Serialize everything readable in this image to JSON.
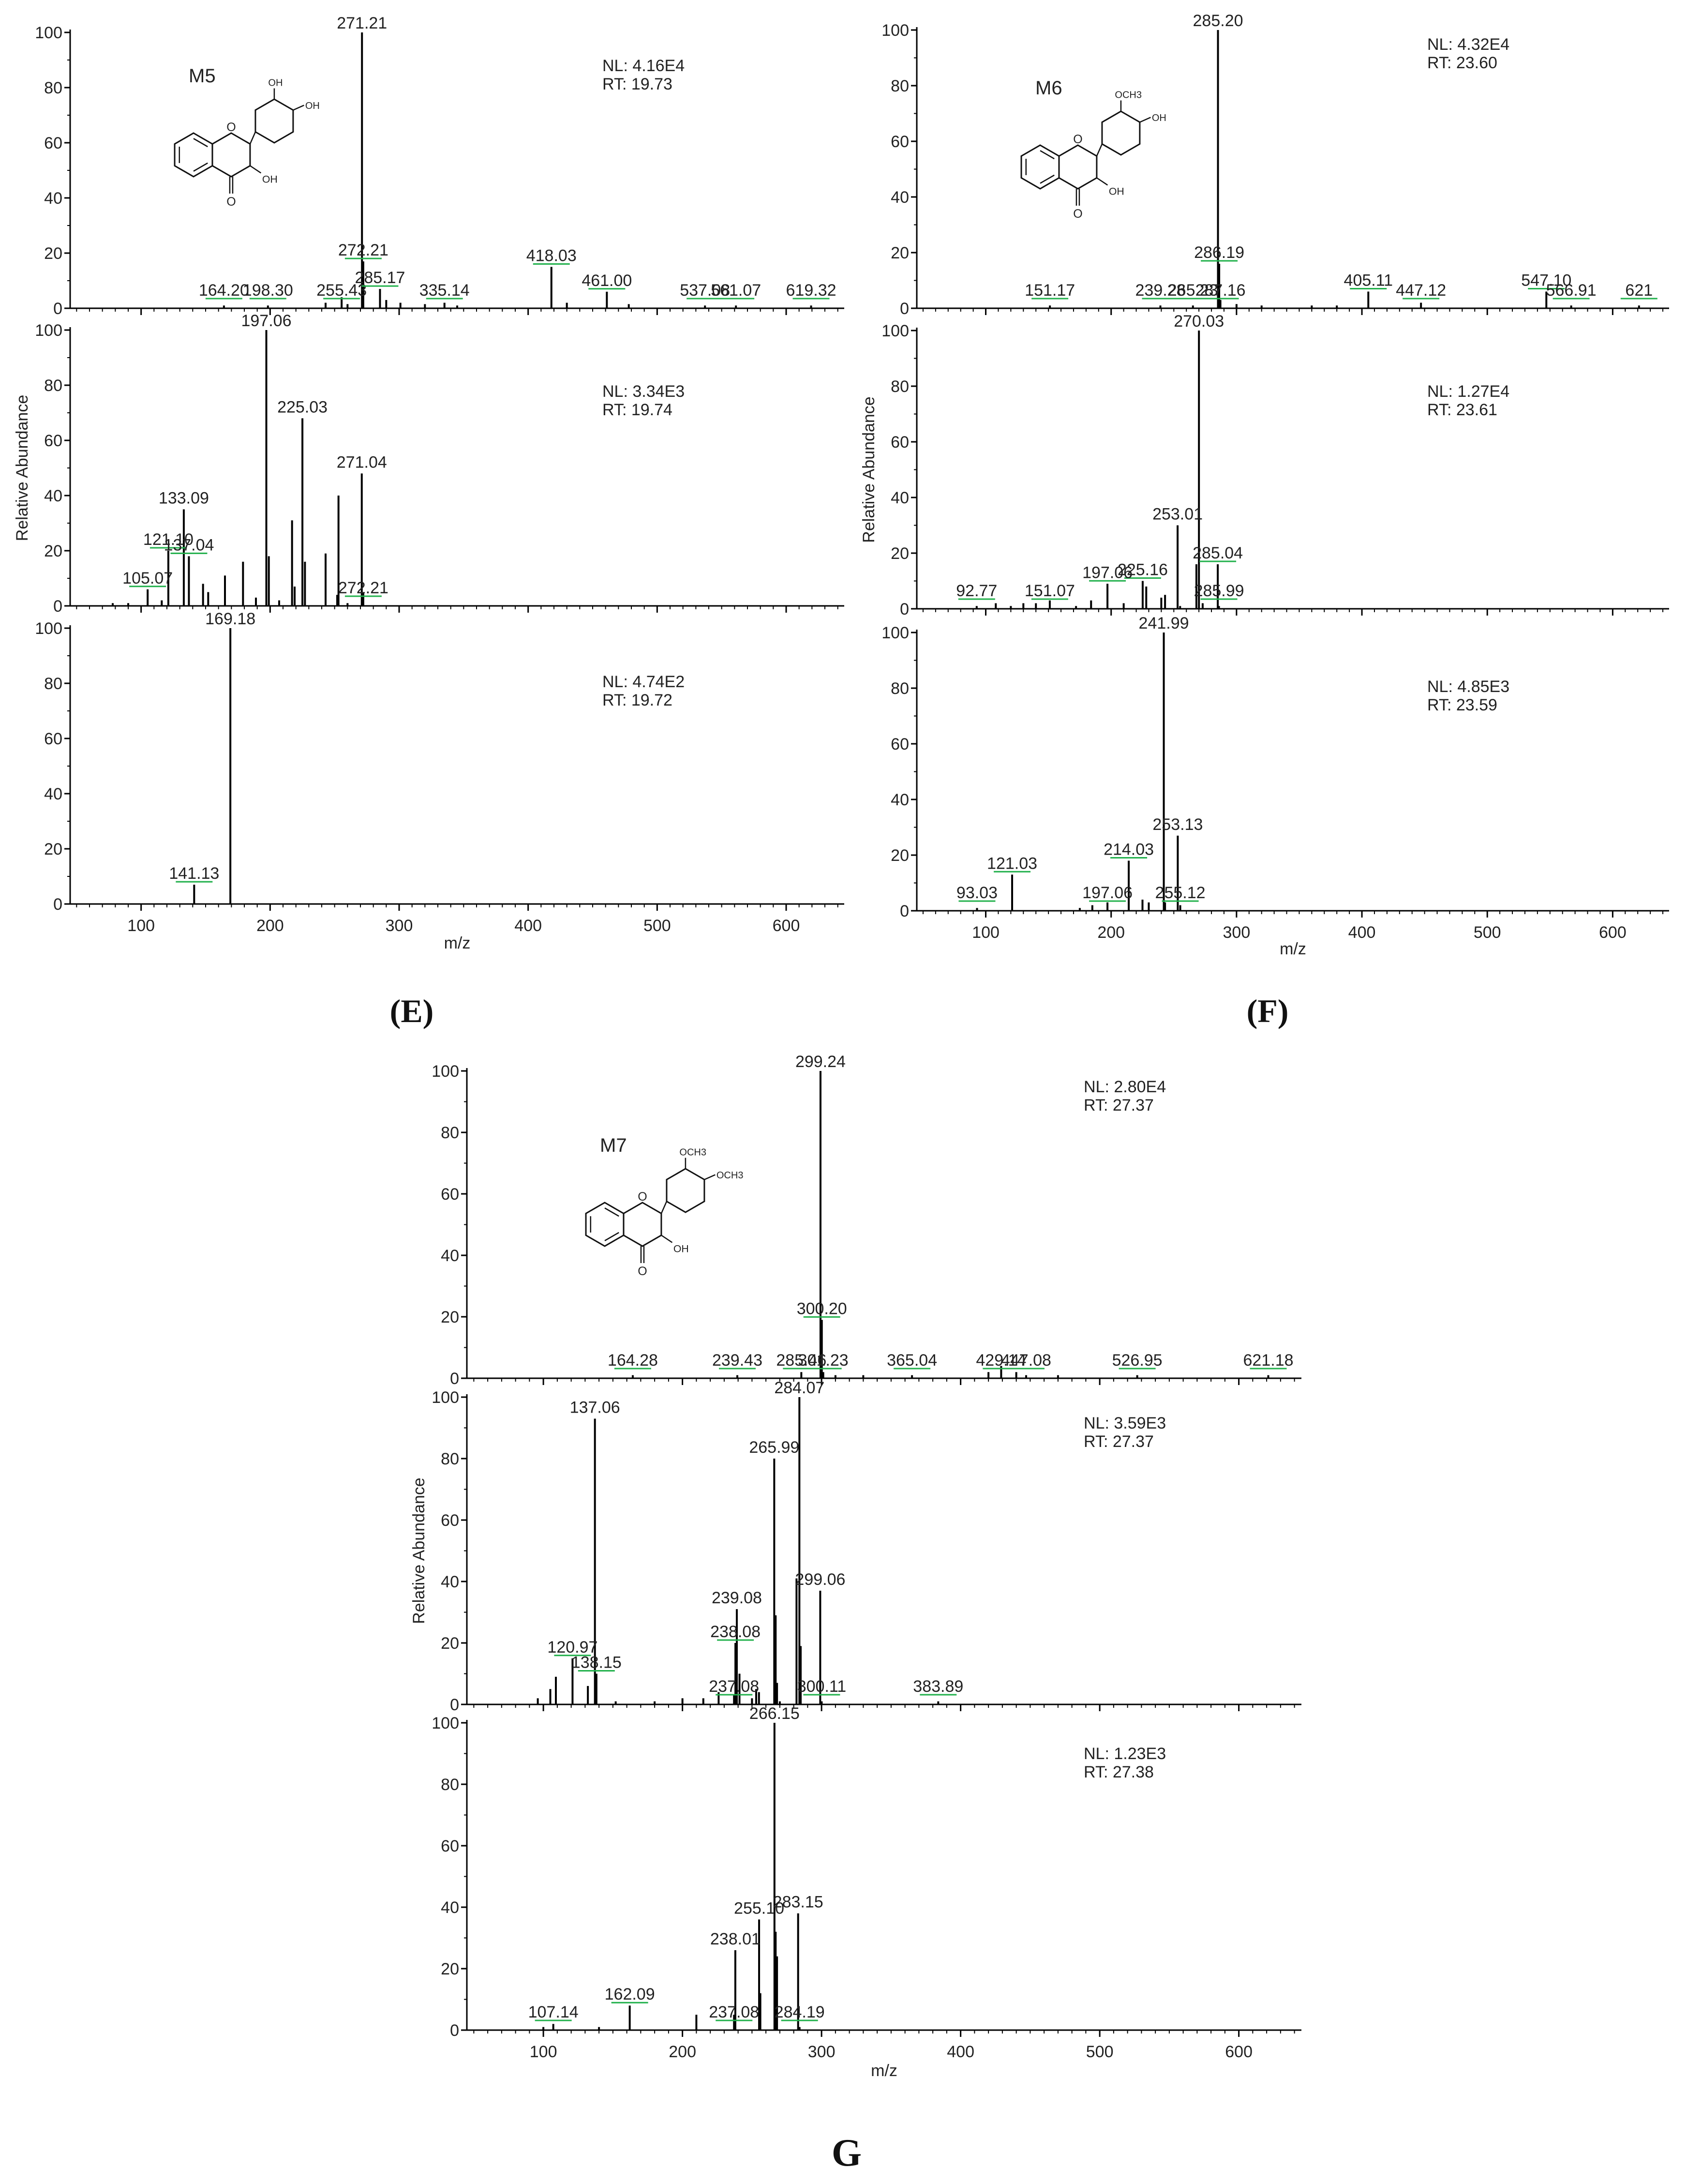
{
  "figure": {
    "panel_labels": [
      "(E)",
      "(F)",
      "G"
    ]
  },
  "chart_data": [
    {
      "type": "bar",
      "panel": "E",
      "compound": "M5",
      "xlabel": "m/z",
      "ylabel": "Relative Abundance",
      "xlim": [
        45,
        645
      ],
      "ylim": [
        0,
        100
      ],
      "x_ticks": [
        100,
        200,
        300,
        400,
        500,
        600
      ],
      "y_ticks": [
        0,
        20,
        40,
        60,
        80,
        100
      ],
      "traces": [
        {
          "nl": "NL: 4.16E4",
          "rt": "RT: 19.73",
          "labels": [
            "271.21",
            "164.20",
            "198.30",
            "255.43",
            "272.21",
            "285.17",
            "335.14",
            "418.03",
            "461.00",
            "537.08",
            "561.07",
            "619.32"
          ],
          "peaks": [
            [
              271.21,
              100
            ],
            [
              272.21,
              17
            ],
            [
              285.17,
              7
            ],
            [
              255.43,
              4
            ],
            [
              198.3,
              1
            ],
            [
              164.2,
              1
            ],
            [
              335.14,
              2
            ],
            [
              418.03,
              15
            ],
            [
              461.0,
              6
            ],
            [
              537.08,
              1
            ],
            [
              561.07,
              1
            ],
            [
              619.32,
              1
            ],
            [
              243,
              2
            ],
            [
              260,
              1.5
            ],
            [
              290,
              3
            ],
            [
              301,
              2
            ],
            [
              320,
              1.5
            ],
            [
              345,
              1
            ],
            [
              430,
              2
            ],
            [
              478,
              1.5
            ]
          ]
        },
        {
          "nl": "NL: 3.34E3",
          "rt": "RT: 19.74",
          "labels": [
            "197.06",
            "225.03",
            "271.04",
            "133.09",
            "121.10",
            "137.04",
            "105.07",
            "272.21"
          ],
          "peaks": [
            [
              197.06,
              100
            ],
            [
              225.03,
              68
            ],
            [
              271.04,
              48
            ],
            [
              133.09,
              35
            ],
            [
              121.1,
              20
            ],
            [
              137.04,
              18
            ],
            [
              105.07,
              6
            ],
            [
              272.21,
              5
            ],
            [
              253,
              40
            ],
            [
              243,
              19
            ],
            [
              217,
              31
            ],
            [
              179,
              16
            ],
            [
              199,
              18
            ],
            [
              227,
              16
            ],
            [
              165,
              11
            ],
            [
              148,
              8
            ],
            [
              152,
              5
            ],
            [
              116,
              2
            ],
            [
              90,
              1
            ],
            [
              78,
              1
            ],
            [
              189,
              3
            ],
            [
              207,
              2
            ],
            [
              219,
              7
            ],
            [
              252,
              4
            ],
            [
              260,
              1
            ]
          ]
        },
        {
          "nl": "NL: 4.74E2",
          "rt": "RT: 19.72",
          "labels": [
            "169.18",
            "141.13"
          ],
          "peaks": [
            [
              169.18,
              100
            ],
            [
              141.13,
              7
            ]
          ]
        }
      ]
    },
    {
      "type": "bar",
      "panel": "F",
      "compound": "M6",
      "xlabel": "m/z",
      "ylabel": "Relative Abundance",
      "xlim": [
        45,
        645
      ],
      "ylim": [
        0,
        100
      ],
      "x_ticks": [
        100,
        200,
        300,
        400,
        500,
        600
      ],
      "y_ticks": [
        0,
        20,
        40,
        60,
        80,
        100
      ],
      "traces": [
        {
          "nl": "NL: 4.32E4",
          "rt": "RT: 23.60",
          "labels": [
            "285.20",
            "151.17",
            "239.28",
            "265.23",
            "286.19",
            "287.16",
            "405.11",
            "447.12",
            "547.10",
            "566.91",
            "621"
          ],
          "peaks": [
            [
              285.2,
              100
            ],
            [
              286.19,
              16
            ],
            [
              287.16,
              3
            ],
            [
              265.23,
              1
            ],
            [
              239.28,
              1
            ],
            [
              151.17,
              1
            ],
            [
              405.11,
              6
            ],
            [
              447.12,
              2
            ],
            [
              547.1,
              6
            ],
            [
              566.91,
              1
            ],
            [
              621,
              1
            ],
            [
              300,
              1.5
            ],
            [
              320,
              1
            ],
            [
              360,
              1
            ],
            [
              380,
              1
            ]
          ]
        },
        {
          "nl": "NL: 1.27E4",
          "rt": "RT: 23.61",
          "labels": [
            "270.03",
            "253.01",
            "225.16",
            "285.04",
            "197.06",
            "151.07",
            "92.77",
            "285.99"
          ],
          "peaks": [
            [
              270.03,
              100
            ],
            [
              253.01,
              30
            ],
            [
              285.04,
              16
            ],
            [
              225.16,
              10
            ],
            [
              197.06,
              9
            ],
            [
              151.07,
              3
            ],
            [
              92.77,
              1
            ],
            [
              285.99,
              1
            ],
            [
              268,
              16
            ],
            [
              243,
              5
            ],
            [
              240,
              4
            ],
            [
              228,
              8
            ],
            [
              210,
              2
            ],
            [
              184,
              3
            ],
            [
              172,
              1
            ],
            [
              140,
              2
            ],
            [
              130,
              2
            ],
            [
              120,
              1
            ],
            [
              108,
              2
            ],
            [
              255,
              1
            ],
            [
              273,
              2
            ]
          ]
        },
        {
          "nl": "NL: 4.85E3",
          "rt": "RT: 23.59",
          "labels": [
            "241.99",
            "253.13",
            "214.03",
            "121.03",
            "197.06",
            "93.03",
            "255.12"
          ],
          "peaks": [
            [
              241.99,
              100
            ],
            [
              253.13,
              27
            ],
            [
              214.03,
              18
            ],
            [
              121.03,
              13
            ],
            [
              197.06,
              3
            ],
            [
              93.03,
              1
            ],
            [
              255.12,
              2
            ],
            [
              185,
              2
            ],
            [
              175,
              1
            ],
            [
              225,
              4
            ],
            [
              230,
              3
            ],
            [
              243,
              3
            ]
          ]
        }
      ]
    },
    {
      "type": "bar",
      "panel": "G",
      "compound": "M7",
      "xlabel": "m/z",
      "ylabel": "Relative Abundance",
      "xlim": [
        45,
        645
      ],
      "ylim": [
        0,
        100
      ],
      "x_ticks": [
        100,
        200,
        300,
        400,
        500,
        600
      ],
      "y_ticks": [
        0,
        20,
        40,
        60,
        80,
        100
      ],
      "traces": [
        {
          "nl": "NL: 2.80E4",
          "rt": "RT: 27.37",
          "labels": [
            "299.24",
            "300.20",
            "285.46",
            "301.23",
            "365.04",
            "429.14",
            "447.08",
            "526.95",
            "621.18",
            "164.28",
            "239.43"
          ],
          "peaks": [
            [
              299.24,
              100
            ],
            [
              300.2,
              19
            ],
            [
              301.23,
              2
            ],
            [
              285.46,
              2
            ],
            [
              365.04,
              1
            ],
            [
              429.14,
              4
            ],
            [
              447.08,
              1
            ],
            [
              526.95,
              1
            ],
            [
              621.18,
              1
            ],
            [
              164.28,
              1
            ],
            [
              239.43,
              1
            ],
            [
              420,
              2
            ],
            [
              440,
              2
            ],
            [
              470,
              1
            ],
            [
              310,
              1
            ],
            [
              330,
              1
            ]
          ]
        },
        {
          "nl": "NL: 3.59E3",
          "rt": "RT: 27.37",
          "labels": [
            "284.07",
            "137.06",
            "265.99",
            "299.06",
            "239.08",
            "238.08",
            "120.97",
            "138.15",
            "237.08",
            "300.11",
            "383.89"
          ],
          "peaks": [
            [
              284.07,
              100
            ],
            [
              137.06,
              93
            ],
            [
              265.99,
              80
            ],
            [
              299.06,
              37
            ],
            [
              239.08,
              31
            ],
            [
              238.08,
              20
            ],
            [
              120.97,
              15
            ],
            [
              138.15,
              10
            ],
            [
              237.08,
              3
            ],
            [
              300.11,
              1
            ],
            [
              383.89,
              1
            ],
            [
              282,
              41
            ],
            [
              285,
              19
            ],
            [
              267,
              29
            ],
            [
              268,
              7
            ],
            [
              253,
              5
            ],
            [
              255,
              4
            ],
            [
              241,
              10
            ],
            [
              226,
              4
            ],
            [
              132,
              6
            ],
            [
              109,
              9
            ],
            [
              105,
              5
            ],
            [
              96,
              2
            ],
            [
              152,
              1
            ],
            [
              180,
              1
            ],
            [
              200,
              2
            ],
            [
              215,
              2
            ],
            [
              250,
              2
            ],
            [
              270,
              1
            ]
          ]
        },
        {
          "nl": "NL: 1.23E3",
          "rt": "RT: 27.38",
          "labels": [
            "266.15",
            "283.15",
            "255.10",
            "238.01",
            "237.08",
            "162.09",
            "107.14",
            "284.19"
          ],
          "peaks": [
            [
              266.15,
              100
            ],
            [
              283.15,
              38
            ],
            [
              255.1,
              36
            ],
            [
              238.01,
              26
            ],
            [
              237.08,
              5
            ],
            [
              162.09,
              8
            ],
            [
              107.14,
              2
            ],
            [
              284.19,
              1
            ],
            [
              268,
              24
            ],
            [
              267,
              32
            ],
            [
              256,
              12
            ],
            [
              210,
              5
            ],
            [
              140,
              1
            ],
            [
              100,
              1
            ]
          ]
        }
      ]
    }
  ]
}
